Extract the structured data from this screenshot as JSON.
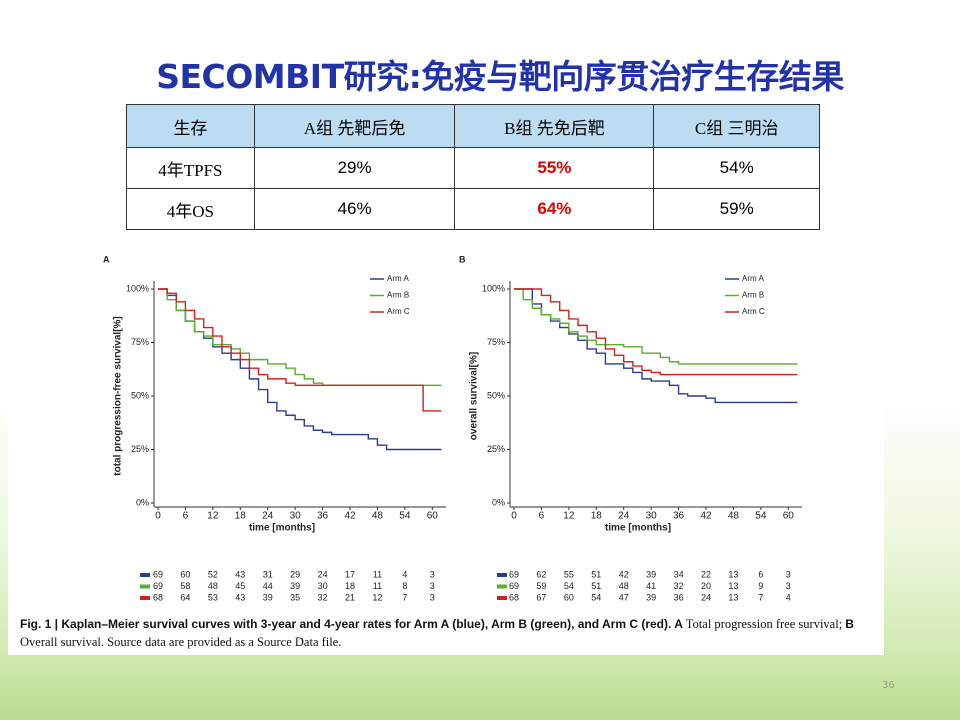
{
  "title": "SECOMBIT研究:免疫与靶向序贯治疗生存结果",
  "table": {
    "header": [
      "生存",
      "A组  先靶后免",
      "B组 先免后靶",
      "C组  三明治"
    ],
    "rows": [
      [
        "4年TPFS",
        "29%",
        "55%",
        "54%"
      ],
      [
        "4年OS",
        "46%",
        "64%",
        "59%"
      ]
    ]
  },
  "chart_data": [
    {
      "type": "step",
      "panel": "A",
      "ylabel": "total progression-free survival[%]",
      "xlabel": "time [months]",
      "xlim": [
        0,
        63
      ],
      "ylim": [
        0,
        100
      ],
      "xticks": [
        0,
        6,
        12,
        18,
        24,
        30,
        36,
        42,
        48,
        54,
        60
      ],
      "yticks": [
        {
          "value": 0,
          "label": "0%"
        },
        {
          "value": 25,
          "label": "25%"
        },
        {
          "value": 50,
          "label": "50%"
        },
        {
          "value": 75,
          "label": "75%"
        },
        {
          "value": 100,
          "label": "100%"
        }
      ],
      "series": [
        {
          "name": "Arm A",
          "color": "#2b3d8f",
          "x": [
            0,
            2,
            4,
            6,
            8,
            10,
            12,
            14,
            16,
            18,
            20,
            22,
            24,
            26,
            28,
            30,
            32,
            34,
            36,
            38,
            46,
            48,
            50,
            62
          ],
          "values": [
            100,
            97,
            90,
            85,
            80,
            77,
            73,
            70,
            67,
            63,
            58,
            53,
            47,
            43,
            41,
            39,
            36,
            34,
            33,
            32,
            30,
            27,
            25,
            25
          ],
          "at_risk": [
            69,
            60,
            52,
            43,
            31,
            29,
            24,
            17,
            11,
            4,
            3
          ]
        },
        {
          "name": "Arm B",
          "color": "#5aae32",
          "x": [
            0,
            2,
            4,
            6,
            8,
            10,
            12,
            16,
            18,
            20,
            24,
            28,
            30,
            32,
            34,
            36,
            62
          ],
          "values": [
            100,
            95,
            90,
            85,
            80,
            78,
            74,
            72,
            70,
            67,
            65,
            63,
            60,
            58,
            56,
            55,
            55
          ],
          "at_risk": [
            69,
            58,
            48,
            45,
            44,
            39,
            30,
            18,
            11,
            8,
            3
          ]
        },
        {
          "name": "Arm C",
          "color": "#d3201f",
          "x": [
            0,
            2,
            4,
            6,
            8,
            10,
            12,
            14,
            16,
            18,
            20,
            22,
            24,
            28,
            30,
            58,
            62
          ],
          "values": [
            100,
            98,
            94,
            90,
            86,
            82,
            78,
            73,
            70,
            67,
            63,
            60,
            58,
            56,
            55,
            43,
            43
          ],
          "at_risk": [
            68,
            64,
            53,
            43,
            39,
            35,
            32,
            21,
            12,
            7,
            3
          ]
        }
      ]
    },
    {
      "type": "step",
      "panel": "B",
      "ylabel": "overall survival[%]",
      "xlabel": "time [months]",
      "xlim": [
        0,
        63
      ],
      "ylim": [
        0,
        100
      ],
      "xticks": [
        0,
        6,
        12,
        18,
        24,
        30,
        36,
        42,
        48,
        54,
        60
      ],
      "yticks": [
        {
          "value": 0,
          "label": "0%"
        },
        {
          "value": 25,
          "label": "25%"
        },
        {
          "value": 50,
          "label": "50%"
        },
        {
          "value": 75,
          "label": "75%"
        },
        {
          "value": 100,
          "label": "100%"
        }
      ],
      "series": [
        {
          "name": "Arm A",
          "color": "#2b3d8f",
          "x": [
            0,
            4,
            6,
            8,
            10,
            12,
            14,
            16,
            18,
            20,
            24,
            26,
            28,
            30,
            34,
            36,
            38,
            42,
            44,
            62
          ],
          "values": [
            100,
            93,
            88,
            85,
            82,
            79,
            76,
            72,
            70,
            65,
            63,
            61,
            58,
            57,
            55,
            51,
            50,
            49,
            47,
            47
          ],
          "at_risk": [
            69,
            62,
            55,
            51,
            42,
            39,
            34,
            22,
            13,
            6,
            3
          ]
        },
        {
          "name": "Arm B",
          "color": "#5aae32",
          "x": [
            0,
            2,
            4,
            6,
            8,
            10,
            12,
            14,
            16,
            18,
            24,
            28,
            32,
            34,
            36,
            62
          ],
          "values": [
            100,
            95,
            91,
            88,
            86,
            84,
            80,
            78,
            76,
            74,
            73,
            70,
            68,
            66,
            65,
            65
          ],
          "at_risk": [
            69,
            59,
            54,
            51,
            48,
            41,
            32,
            20,
            13,
            9,
            3
          ]
        },
        {
          "name": "Arm C",
          "color": "#d3201f",
          "x": [
            0,
            4,
            6,
            8,
            10,
            12,
            14,
            16,
            18,
            20,
            22,
            24,
            26,
            28,
            30,
            32,
            62
          ],
          "values": [
            100,
            100,
            97,
            94,
            90,
            86,
            83,
            80,
            77,
            72,
            69,
            66,
            64,
            62,
            61,
            60,
            60
          ],
          "at_risk": [
            68,
            67,
            60,
            54,
            47,
            39,
            36,
            24,
            13,
            7,
            4
          ]
        }
      ]
    }
  ],
  "caption": [
    "Fig. 1 | Kaplan–Meier survival curves with 3-year and 4-year rates for Arm A (blue), Arm B (green), and Arm C (red). ",
    "A",
    " Total progression free survival; ",
    "B",
    " Overall survival. Source data are provided as a Source Data file."
  ],
  "page_number": "36"
}
